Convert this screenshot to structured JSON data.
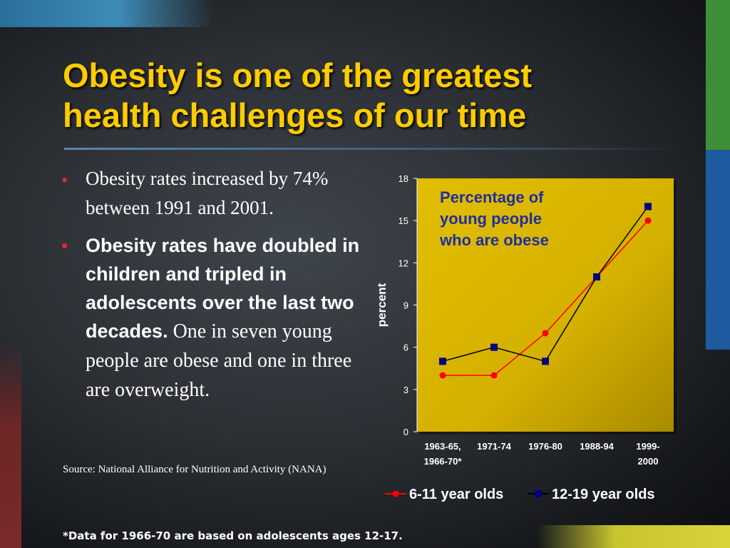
{
  "slide": {
    "title_line1": "Obesity is one of the greatest",
    "title_line2": "health challenges of our time",
    "bullet1": "Obesity rates increased by 74% between 1991 and 2001.",
    "bullet2_bold": "Obesity rates have doubled in children and tripled in adolescents over the last two decades.",
    "bullet2_rest": " One in seven young people are obese and one in three are overweight.",
    "bullet_symbol": "•",
    "source": "Source: National Alliance for Nutrition and Activity (NANA)",
    "footnote": "*Data for 1966-70 are based on adolescents ages 12-17."
  },
  "colors": {
    "title": "#ffcc00",
    "bullet": "#e8272b",
    "plot_bg": "#d4b000",
    "annotation": "#1f2f9e",
    "series_6_11": "#ff0000",
    "series_12_19": "#000080"
  },
  "chart_data": {
    "type": "line",
    "annotation": "Percentage of young people who are obese",
    "ylabel": "percent",
    "xlabel": "",
    "ylim": [
      0,
      18
    ],
    "yticks": [
      0,
      3,
      6,
      9,
      12,
      15,
      18
    ],
    "categories": [
      [
        "1963-65,",
        "1966-70*"
      ],
      [
        "1971-74"
      ],
      [
        "1976-80"
      ],
      [
        "1988-94"
      ],
      [
        "1999-",
        "2000"
      ]
    ],
    "series": [
      {
        "name": "6-11 year olds",
        "values": [
          4,
          4,
          7,
          11,
          15
        ],
        "marker": "circle"
      },
      {
        "name": "12-19 year olds",
        "values": [
          5,
          6,
          5,
          11,
          16
        ],
        "marker": "square"
      }
    ],
    "grid": false,
    "legend": "bottom"
  }
}
